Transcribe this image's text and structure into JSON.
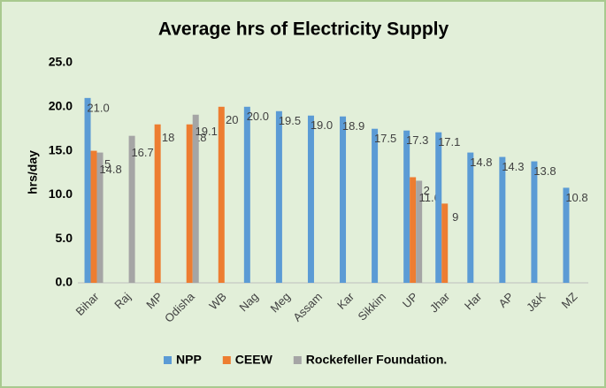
{
  "chart_data": {
    "type": "bar",
    "title": "Average hrs of Electricity Supply",
    "y_label": "hrs/day",
    "categories": [
      "Bihar",
      "Raj",
      "MP",
      "Odisha",
      "WB",
      "Nag",
      "Meg",
      "Assam",
      "Kar",
      "Sikkim",
      "UP",
      "Jhar",
      "Har",
      "AP",
      "J&K",
      "MZ"
    ],
    "series": [
      {
        "name": "NPP",
        "color": "#5b9bd5",
        "values": [
          21.0,
          null,
          null,
          null,
          null,
          20.0,
          19.5,
          19.0,
          18.9,
          17.5,
          17.3,
          17.1,
          14.8,
          14.3,
          13.8,
          10.8
        ],
        "value_labels": [
          "21.0",
          null,
          null,
          null,
          null,
          "20.0",
          "19.5",
          "19.0",
          "18.9",
          "17.5",
          "17.3",
          "17.1",
          "14.8",
          "14.3",
          "13.8",
          "10.8"
        ]
      },
      {
        "name": "CEEW",
        "color": "#ed7d31",
        "values": [
          15,
          null,
          18,
          18,
          20,
          null,
          null,
          null,
          null,
          null,
          12,
          9,
          null,
          null,
          null,
          null
        ]
      },
      {
        "name": "Rockefeller Foundation.",
        "color": "#a5a5a5",
        "values": [
          14.8,
          16.7,
          null,
          19.1,
          null,
          null,
          null,
          null,
          null,
          null,
          11.6,
          null,
          null,
          null,
          null,
          null
        ]
      }
    ],
    "ylim": [
      0,
      25
    ],
    "yticks": [
      {
        "value": 0,
        "label": "0.0"
      },
      {
        "value": 5,
        "label": "5.0"
      },
      {
        "value": 10,
        "label": "10.0"
      },
      {
        "value": 15,
        "label": "15.0"
      },
      {
        "value": 20,
        "label": "20.0"
      },
      {
        "value": 25,
        "label": "25.0"
      }
    ],
    "grid": false,
    "legend": "bottom"
  }
}
